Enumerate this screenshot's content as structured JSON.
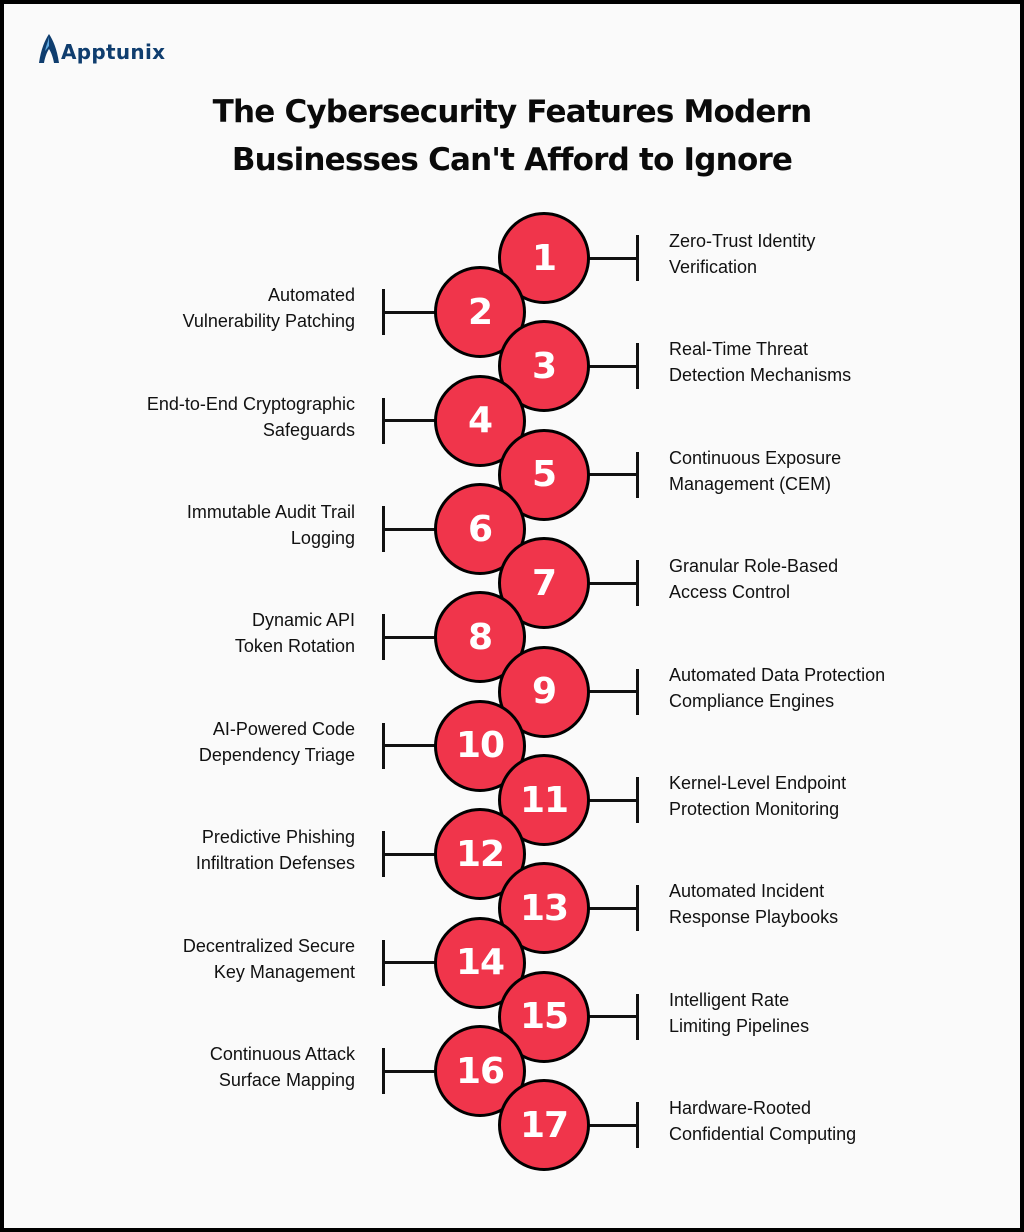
{
  "brand": {
    "logo_text": "Apptunix",
    "color": "#0f3d6e"
  },
  "title": {
    "line1": "The Cybersecurity Features Modern",
    "line2": "Businesses Can't Afford to Ignore"
  },
  "colors": {
    "circle_fill": "#f0354b",
    "outline": "#000000"
  },
  "features": [
    {
      "number": "1",
      "line1": "Zero-Trust Identity",
      "line2": "Verification"
    },
    {
      "number": "2",
      "line1": "Automated",
      "line2": "Vulnerability Patching"
    },
    {
      "number": "3",
      "line1": "Real-Time Threat",
      "line2": "Detection Mechanisms"
    },
    {
      "number": "4",
      "line1": "End-to-End Cryptographic",
      "line2": "Safeguards"
    },
    {
      "number": "5",
      "line1": "Continuous Exposure",
      "line2": "Management (CEM)"
    },
    {
      "number": "6",
      "line1": "Immutable Audit Trail",
      "line2": "Logging"
    },
    {
      "number": "7",
      "line1": "Granular Role-Based",
      "line2": "Access Control"
    },
    {
      "number": "8",
      "line1": "Dynamic API",
      "line2": "Token Rotation"
    },
    {
      "number": "9",
      "line1": "Automated Data Protection",
      "line2": "Compliance Engines"
    },
    {
      "number": "10",
      "line1": "AI-Powered Code",
      "line2": "Dependency Triage"
    },
    {
      "number": "11",
      "line1": "Kernel-Level Endpoint",
      "line2": "Protection Monitoring"
    },
    {
      "number": "12",
      "line1": "Predictive Phishing",
      "line2": "Infiltration Defenses"
    },
    {
      "number": "13",
      "line1": "Automated Incident",
      "line2": "Response Playbooks"
    },
    {
      "number": "14",
      "line1": "Decentralized Secure",
      "line2": "Key Management"
    },
    {
      "number": "15",
      "line1": "Intelligent Rate",
      "line2": "Limiting Pipelines"
    },
    {
      "number": "16",
      "line1": "Continuous Attack",
      "line2": "Surface Mapping"
    },
    {
      "number": "17",
      "line1": "Hardware-Rooted",
      "line2": "Confidential Computing"
    }
  ]
}
